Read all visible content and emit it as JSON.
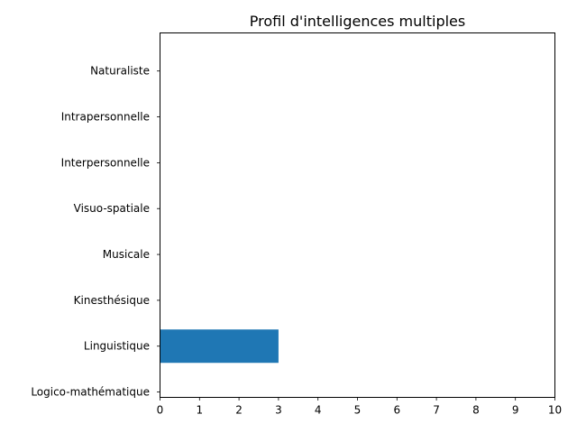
{
  "chart_data": {
    "type": "bar",
    "orientation": "horizontal",
    "title": "Profil d'intelligences multiples",
    "xlabel": "",
    "ylabel": "",
    "categories": [
      "Logico-mathématique",
      "Linguistique",
      "Kinesthésique",
      "Musicale",
      "Visuo-spatiale",
      "Interpersonnelle",
      "Intrapersonnelle",
      "Naturaliste"
    ],
    "values": [
      0,
      3,
      0,
      0,
      0,
      0,
      0,
      0
    ],
    "xlim": [
      0,
      10
    ],
    "xticks": [
      "0",
      "1",
      "2",
      "3",
      "4",
      "5",
      "6",
      "7",
      "8",
      "9",
      "10"
    ],
    "grid": false,
    "bar_color": "#1f77b4"
  }
}
